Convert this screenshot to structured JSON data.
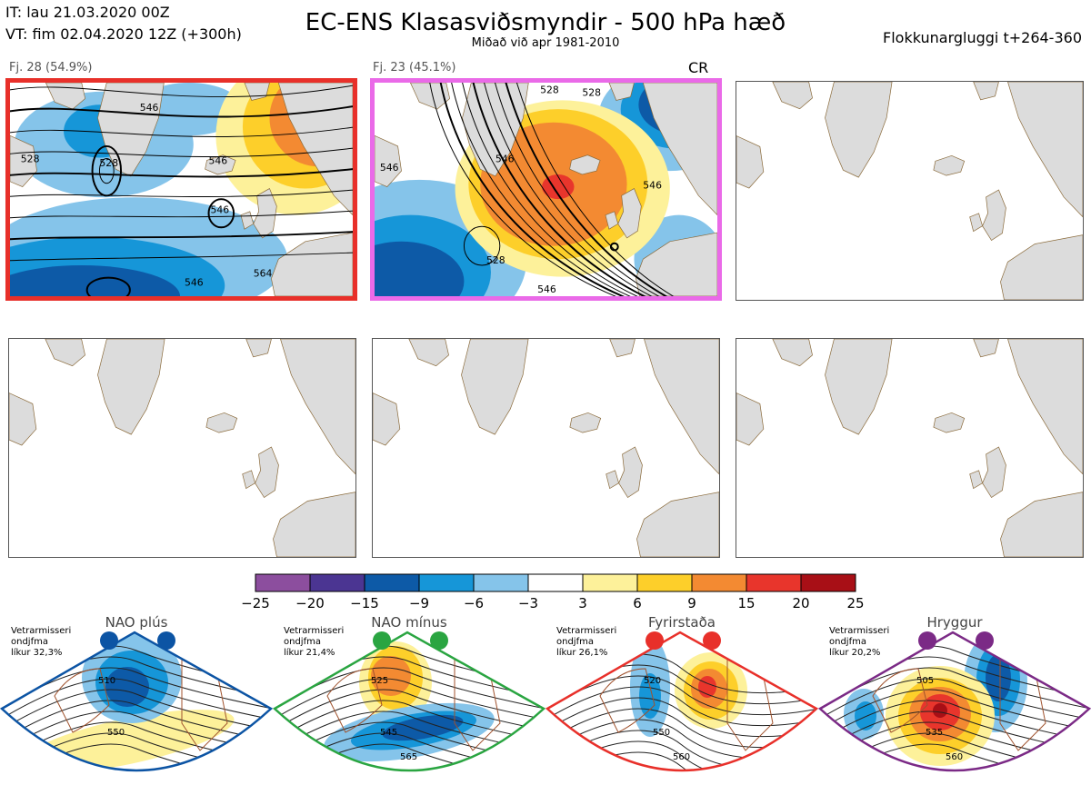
{
  "header": {
    "it": "IT: lau 21.03.2020 00Z",
    "vt": "VT: fim 02.04.2020 12Z  (+300h)",
    "title": "EC-ENS Klasasviðsmyndir - 500 hPa hæð",
    "subtitle": "Miðað við apr 1981-2010",
    "window": "Flokkunargluggi t+264-360"
  },
  "panels": [
    {
      "label": "Fj. 28 (54.9%)",
      "border": "#e8302a",
      "contours": [
        "528",
        "528",
        "546",
        "546",
        "546",
        "546",
        "564"
      ]
    },
    {
      "label": "Fj. 23 (45.1%)",
      "border": "#ea6ae8",
      "regime_tag": "CR",
      "contours": [
        "528",
        "528",
        "528",
        "546",
        "546",
        "546",
        "546"
      ]
    },
    {
      "label": ""
    },
    {
      "label": ""
    },
    {
      "label": ""
    },
    {
      "label": ""
    }
  ],
  "legend": {
    "colors": [
      "#8c4e9e",
      "#4b3592",
      "#0d5aa7",
      "#1696d8",
      "#85c4ea",
      "#ffffff",
      "#fdf19a",
      "#fdcf2a",
      "#f38a32",
      "#e8352c",
      "#a80f16"
    ],
    "ticks": [
      "−25",
      "−20",
      "−15",
      "−9",
      "−6",
      "−3",
      "3",
      "6",
      "9",
      "15",
      "20",
      "25"
    ]
  },
  "regimes": [
    {
      "title": "NAO plús",
      "note": [
        "Vetrarmisseri",
        "ondjfma",
        "líkur 32,3%"
      ],
      "color": "#0c54a4",
      "contours": [
        "510",
        "550"
      ]
    },
    {
      "title": "NAO mínus",
      "note": [
        "Vetrarmisseri",
        "ondjfma",
        "líkur 21,4%"
      ],
      "color": "#2aa541",
      "contours": [
        "525",
        "545",
        "565"
      ]
    },
    {
      "title": "Fyrirstaða",
      "note": [
        "Vetrarmisseri",
        "ondjfma",
        "líkur 26,1%"
      ],
      "color": "#e8302a",
      "contours": [
        "520",
        "550",
        "560"
      ]
    },
    {
      "title": "Hryggur",
      "note": [
        "Vetrarmisseri",
        "ondjfma",
        "líkur 20,2%"
      ],
      "color": "#7b2a86",
      "contours": [
        "505",
        "535",
        "560"
      ]
    }
  ]
}
